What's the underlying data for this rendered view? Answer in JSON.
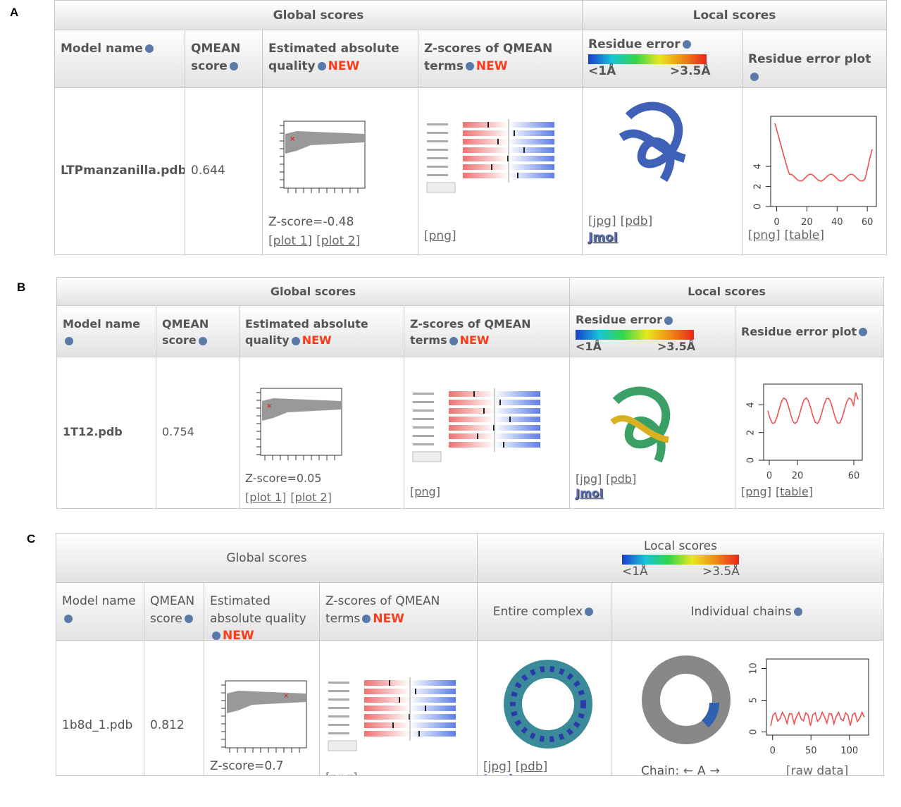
{
  "panels": [
    {
      "label": "A",
      "global": "Global scores",
      "local": "Local scores",
      "columns": [
        "Model name",
        "QMEAN score",
        "Estimated absolute quality",
        "Z-scores of QMEAN terms",
        "Residue error",
        "Residue error plot"
      ],
      "new": "NEW",
      "scale_low": "<1Å",
      "scale_high": ">3.5Å",
      "model": "LTPmanzanilla.pdb",
      "score": 0.644,
      "zscore": "Z-score=-0.48",
      "quality_links": [
        "[plot 1]",
        "[plot 2]"
      ],
      "z_links": [
        "[png]"
      ],
      "structure_links": [
        "[jpg]",
        "[pdb]"
      ],
      "jmol": "Jmol",
      "plot": {
        "xlim": [
          -4,
          66
        ],
        "xticks": [
          0,
          20,
          40,
          60
        ],
        "ylim": [
          0,
          9
        ],
        "yticks": [
          0,
          2,
          4
        ]
      },
      "plot_links": [
        "[png]",
        "[table]"
      ]
    },
    {
      "label": "B",
      "global": "Global scores",
      "local": "Local scores",
      "columns": [
        "Model name",
        "QMEAN score",
        "Estimated absolute quality",
        "Z-scores of QMEAN terms",
        "Residue error",
        "Residue error plot"
      ],
      "new": "NEW",
      "scale_low": "<1Å",
      "scale_high": ">3.5Å",
      "model": "1T12.pdb",
      "score": 0.754,
      "zscore": "Z-score=0.05",
      "quality_links": [
        "[plot 1]",
        "[plot 2]"
      ],
      "z_links": [
        "[png]"
      ],
      "structure_links": [
        "[jpg]",
        "[pdb]"
      ],
      "jmol": "Jmol",
      "plot": {
        "xlim": [
          -4,
          66
        ],
        "xticks": [
          0,
          20,
          60
        ],
        "ylim": [
          0,
          5.5
        ],
        "yticks": [
          0,
          2,
          4
        ]
      },
      "plot_links": [
        "[png]",
        "[table]"
      ]
    },
    {
      "label": "C",
      "global": "Global scores",
      "local": "Local scores",
      "columns": [
        "Model name",
        "QMEAN score",
        "Estimated absolute quality",
        "Z-scores of QMEAN terms",
        "Entire complex",
        "Individual chains"
      ],
      "new": "NEW",
      "scale_low": "<1Å",
      "scale_high": ">3.5Å",
      "model": "1b8d_1.pdb",
      "score": 0.812,
      "zscore": "Z-score=0.7",
      "quality_links": [],
      "z_links": [
        "[png]"
      ],
      "structure_links": [
        "[jpg]",
        "[pdb]"
      ],
      "jmol": "Jmol",
      "chain_label": "Chain:",
      "chain_prev": "←",
      "chain": "A",
      "chain_next": "→",
      "plot": {
        "xlim": [
          -8,
          125
        ],
        "xticks": [
          0,
          50,
          100
        ],
        "ylim": [
          -0.5,
          11.5
        ],
        "yticks": [
          0,
          5,
          10
        ]
      },
      "plot_links": [
        "[raw data]"
      ]
    }
  ]
}
